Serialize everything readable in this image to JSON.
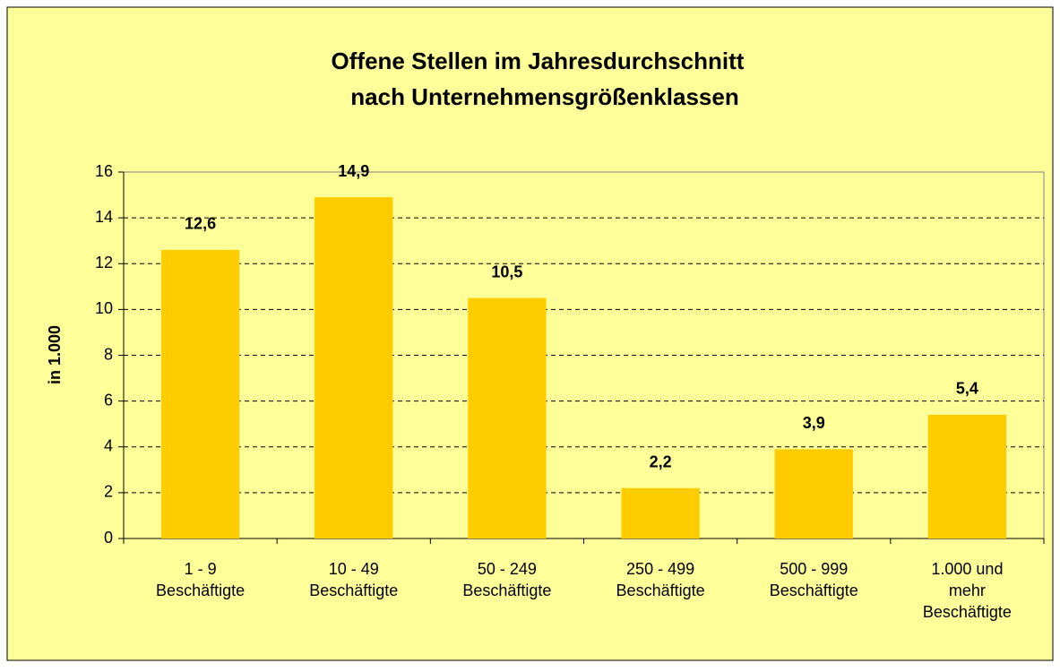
{
  "chart_data": {
    "type": "bar",
    "title": [
      "Offene Stellen im Jahresdurchschnitt",
      "nach Unternehmensgrößenklassen"
    ],
    "ylabel": "in 1.000",
    "categories": [
      [
        "1 - 9",
        "Beschäftigte"
      ],
      [
        "10 - 49",
        "Beschäftigte"
      ],
      [
        "50 - 249",
        "Beschäftigte"
      ],
      [
        "250 - 499",
        "Beschäftigte"
      ],
      [
        "500 - 999",
        "Beschäftigte"
      ],
      [
        "1.000 und",
        "mehr",
        "Beschäftigte"
      ]
    ],
    "values": [
      12.6,
      14.9,
      10.5,
      2.2,
      3.9,
      5.4
    ],
    "value_labels": [
      "12,6",
      "14,9",
      "10,5",
      "2,2",
      "3,9",
      "5,4"
    ],
    "color": "#ffcc00",
    "ylim": [
      0,
      16
    ],
    "yticks": [
      0,
      2,
      4,
      6,
      8,
      10,
      12,
      14,
      16
    ],
    "grid": true
  }
}
